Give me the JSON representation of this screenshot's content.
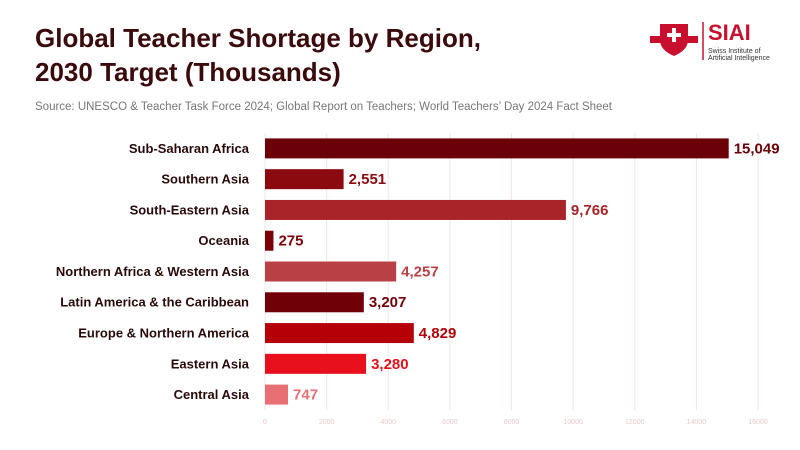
{
  "chart_data": {
    "type": "hbar",
    "title": [
      "Global Teacher Shortage by Region,",
      "2030 Target (Thousands)"
    ],
    "subtitle": "Source: UNESCO & Teacher Task Force 2024; Global Report on Teachers; World Teachers’ Day 2024 Fact Sheet",
    "categories": [
      "Sub-Saharan Africa",
      "Southern Asia",
      "South-Eastern Asia",
      "Oceania",
      "Northern Africa & Western Asia",
      "Latin America & the Caribbean",
      "Europe & Northern America",
      "Eastern Asia",
      "Central Asia"
    ],
    "values": [
      15049,
      2551,
      9766,
      275,
      4257,
      3207,
      4829,
      3280,
      747
    ],
    "value_labels": [
      "15,049",
      "2,551",
      "9,766",
      "275",
      "4,257",
      "3,207",
      "4,829",
      "3,280",
      "747"
    ],
    "colors": [
      "#6b0008",
      "#8a0a10",
      "#a82428",
      "#7a0008",
      "#b94044",
      "#700008",
      "#b50008",
      "#e8101c",
      "#e87074"
    ],
    "xlim": [
      0,
      16000
    ],
    "xticks": [
      0,
      2000,
      4000,
      6000,
      8000,
      10000,
      12000,
      14000,
      16000
    ],
    "grid": true
  },
  "logo": {
    "name": "SIAI",
    "subtitle": [
      "Swiss Institute of",
      "Artificial Intelligence"
    ]
  }
}
